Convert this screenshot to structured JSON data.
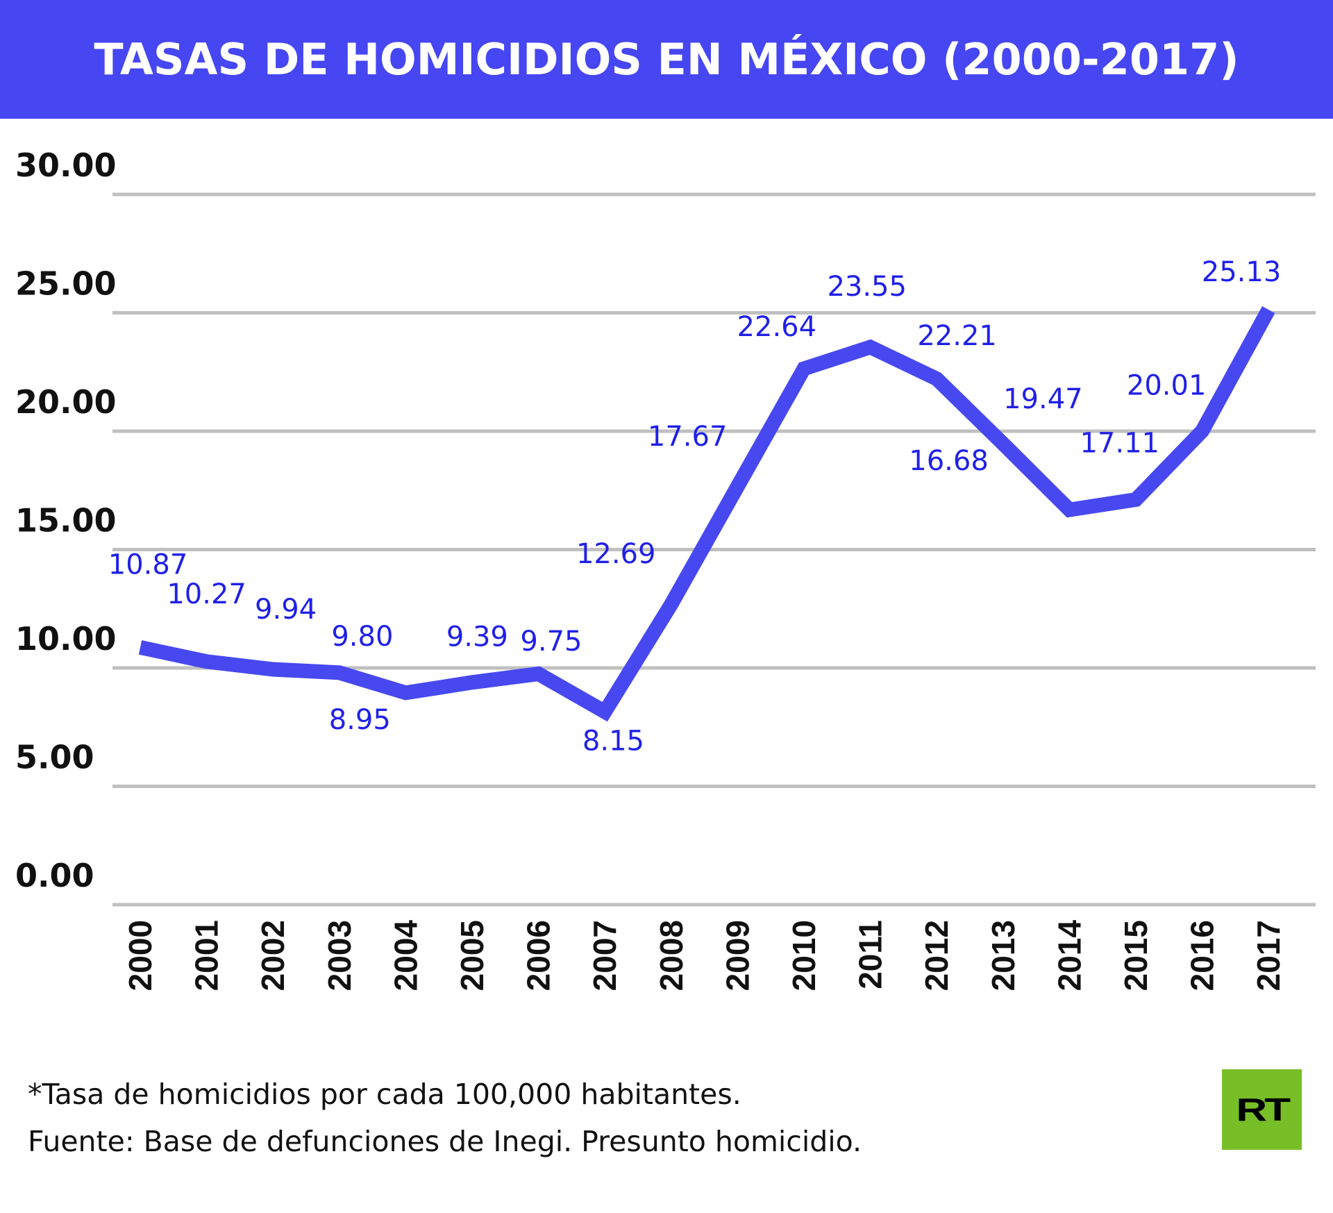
{
  "title": "TASAS DE HOMICIDIOS EN MÉXICO (2000-2017)",
  "colors": {
    "header": "#4646f2",
    "line": "#4848f0",
    "labels": "#2020e8",
    "grid": "#c0c0c0",
    "logo": "#78be26"
  },
  "chart_data": {
    "type": "line",
    "title": "TASAS DE HOMICIDIOS EN MÉXICO (2000-2017)",
    "xlabel": "",
    "ylabel": "",
    "ylim": [
      0,
      30
    ],
    "yticks": [
      "0.00",
      "5.00",
      "10.00",
      "15.00",
      "20.00",
      "25.00",
      "30.00"
    ],
    "categories": [
      "2000",
      "2001",
      "2002",
      "2003",
      "2004",
      "2005",
      "2006",
      "2007",
      "2008",
      "2009",
      "2010",
      "2011",
      "2012",
      "2013",
      "2014",
      "2015",
      "2016",
      "2017"
    ],
    "values": [
      10.87,
      10.27,
      9.94,
      9.8,
      8.95,
      9.39,
      9.75,
      8.15,
      12.69,
      17.67,
      22.64,
      23.55,
      22.21,
      19.47,
      16.68,
      17.11,
      20.01,
      25.13
    ],
    "data_labels": [
      "10.87",
      "10.27",
      "9.94",
      "9.80",
      "8.95",
      "9.39",
      "9.75",
      "8.15",
      "12.69",
      "17.67",
      "22.64",
      "23.55",
      "22.21",
      "19.47",
      "16.68",
      "17.11",
      "20.01",
      "25.13"
    ],
    "grid": true
  },
  "footnotes": {
    "note": "*Tasa de homicidios por cada 100,000 habitantes.",
    "source": "Fuente: Base de defunciones de Inegi. Presunto homicidio."
  },
  "logo_text": "RT"
}
